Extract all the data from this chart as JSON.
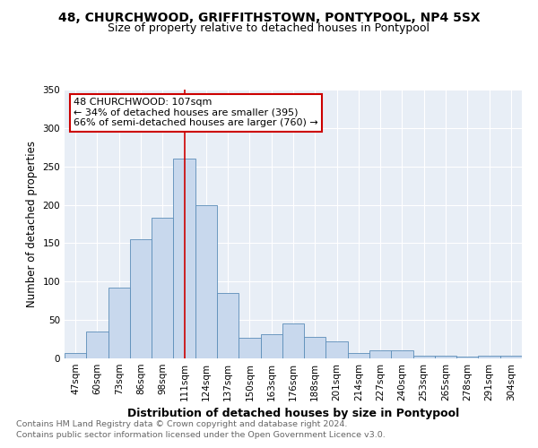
{
  "title": "48, CHURCHWOOD, GRIFFITHSTOWN, PONTYPOOL, NP4 5SX",
  "subtitle": "Size of property relative to detached houses in Pontypool",
  "xlabel": "Distribution of detached houses by size in Pontypool",
  "ylabel": "Number of detached properties",
  "footnote1": "Contains HM Land Registry data © Crown copyright and database right 2024.",
  "footnote2": "Contains public sector information licensed under the Open Government Licence v3.0.",
  "categories": [
    "47sqm",
    "60sqm",
    "73sqm",
    "86sqm",
    "98sqm",
    "111sqm",
    "124sqm",
    "137sqm",
    "150sqm",
    "163sqm",
    "176sqm",
    "188sqm",
    "201sqm",
    "214sqm",
    "227sqm",
    "240sqm",
    "253sqm",
    "265sqm",
    "278sqm",
    "291sqm",
    "304sqm"
  ],
  "values": [
    7,
    35,
    92,
    155,
    183,
    260,
    200,
    85,
    27,
    32,
    45,
    28,
    22,
    7,
    10,
    10,
    4,
    3,
    2,
    3,
    3
  ],
  "highlight_index": 5,
  "bar_fill_color": "#c8d8ed",
  "bar_edge_color": "#5b8db8",
  "annotation_box_text": "48 CHURCHWOOD: 107sqm\n← 34% of detached houses are smaller (395)\n66% of semi-detached houses are larger (760) →",
  "annotation_box_color": "#ffffff",
  "annotation_box_edge": "#cc0000",
  "annotation_line_color": "#cc0000",
  "ylim": [
    0,
    350
  ],
  "yticks": [
    0,
    50,
    100,
    150,
    200,
    250,
    300,
    350
  ],
  "background_color": "#e8eef6",
  "grid_color": "#ffffff",
  "title_fontsize": 10,
  "subtitle_fontsize": 9,
  "xlabel_fontsize": 9,
  "ylabel_fontsize": 8.5,
  "tick_fontsize": 7.5,
  "footnote_fontsize": 6.8
}
